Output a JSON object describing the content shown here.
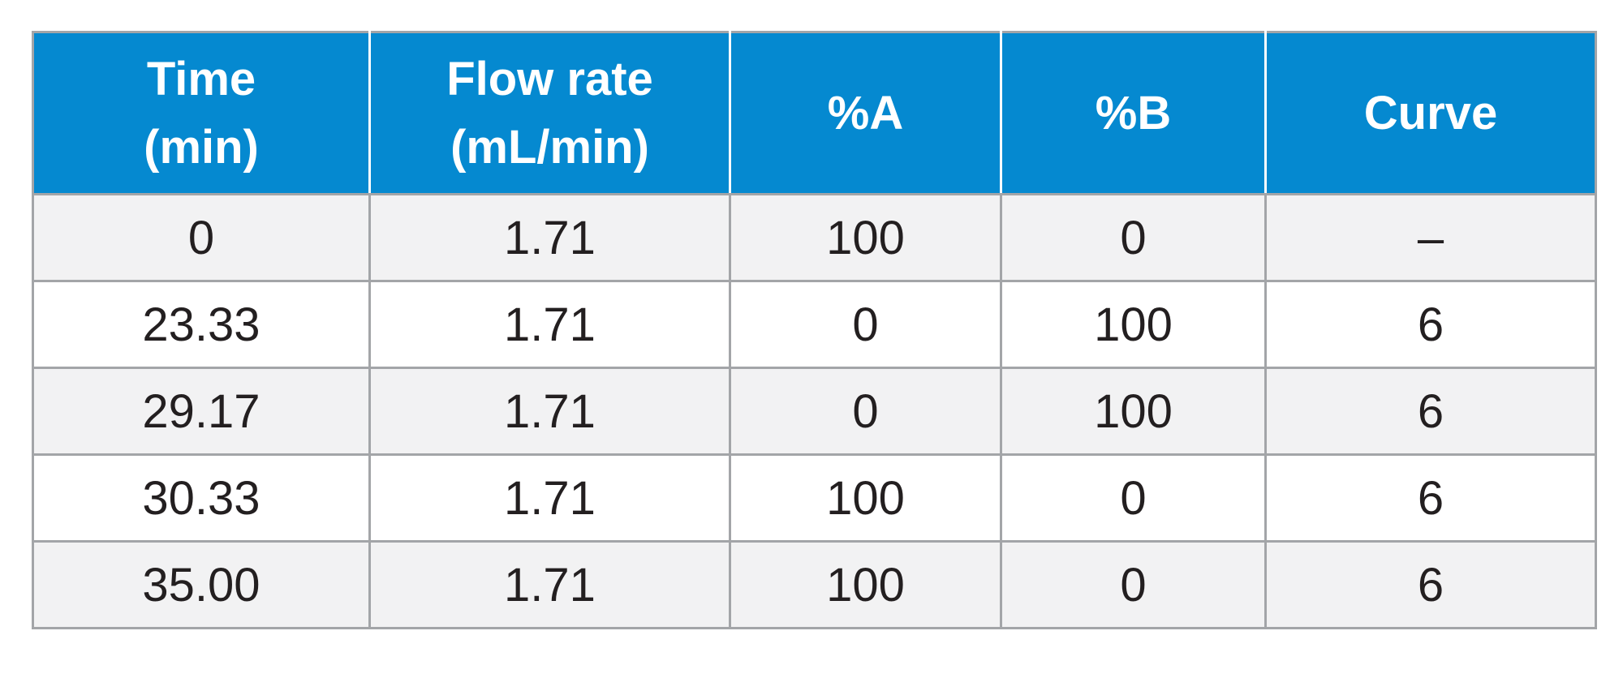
{
  "table": {
    "headers": [
      [
        "Time",
        "(min)"
      ],
      [
        "Flow rate",
        "(mL/min)"
      ],
      [
        "%A"
      ],
      [
        "%B"
      ],
      [
        "Curve"
      ]
    ],
    "rows": [
      [
        "0",
        "1.71",
        "100",
        "0",
        "–"
      ],
      [
        "23.33",
        "1.71",
        "0",
        "100",
        "6"
      ],
      [
        "29.17",
        "1.71",
        "0",
        "100",
        "6"
      ],
      [
        "30.33",
        "1.71",
        "100",
        "0",
        "6"
      ],
      [
        "35.00",
        "1.71",
        "100",
        "0",
        "6"
      ]
    ]
  },
  "colors": {
    "header_bg": "#0589d0",
    "header_text": "#ffffff",
    "row_alt_bg": "#f2f2f3",
    "row_bg": "#ffffff",
    "grid": "#a3a5a8",
    "body_text": "#231f20"
  }
}
